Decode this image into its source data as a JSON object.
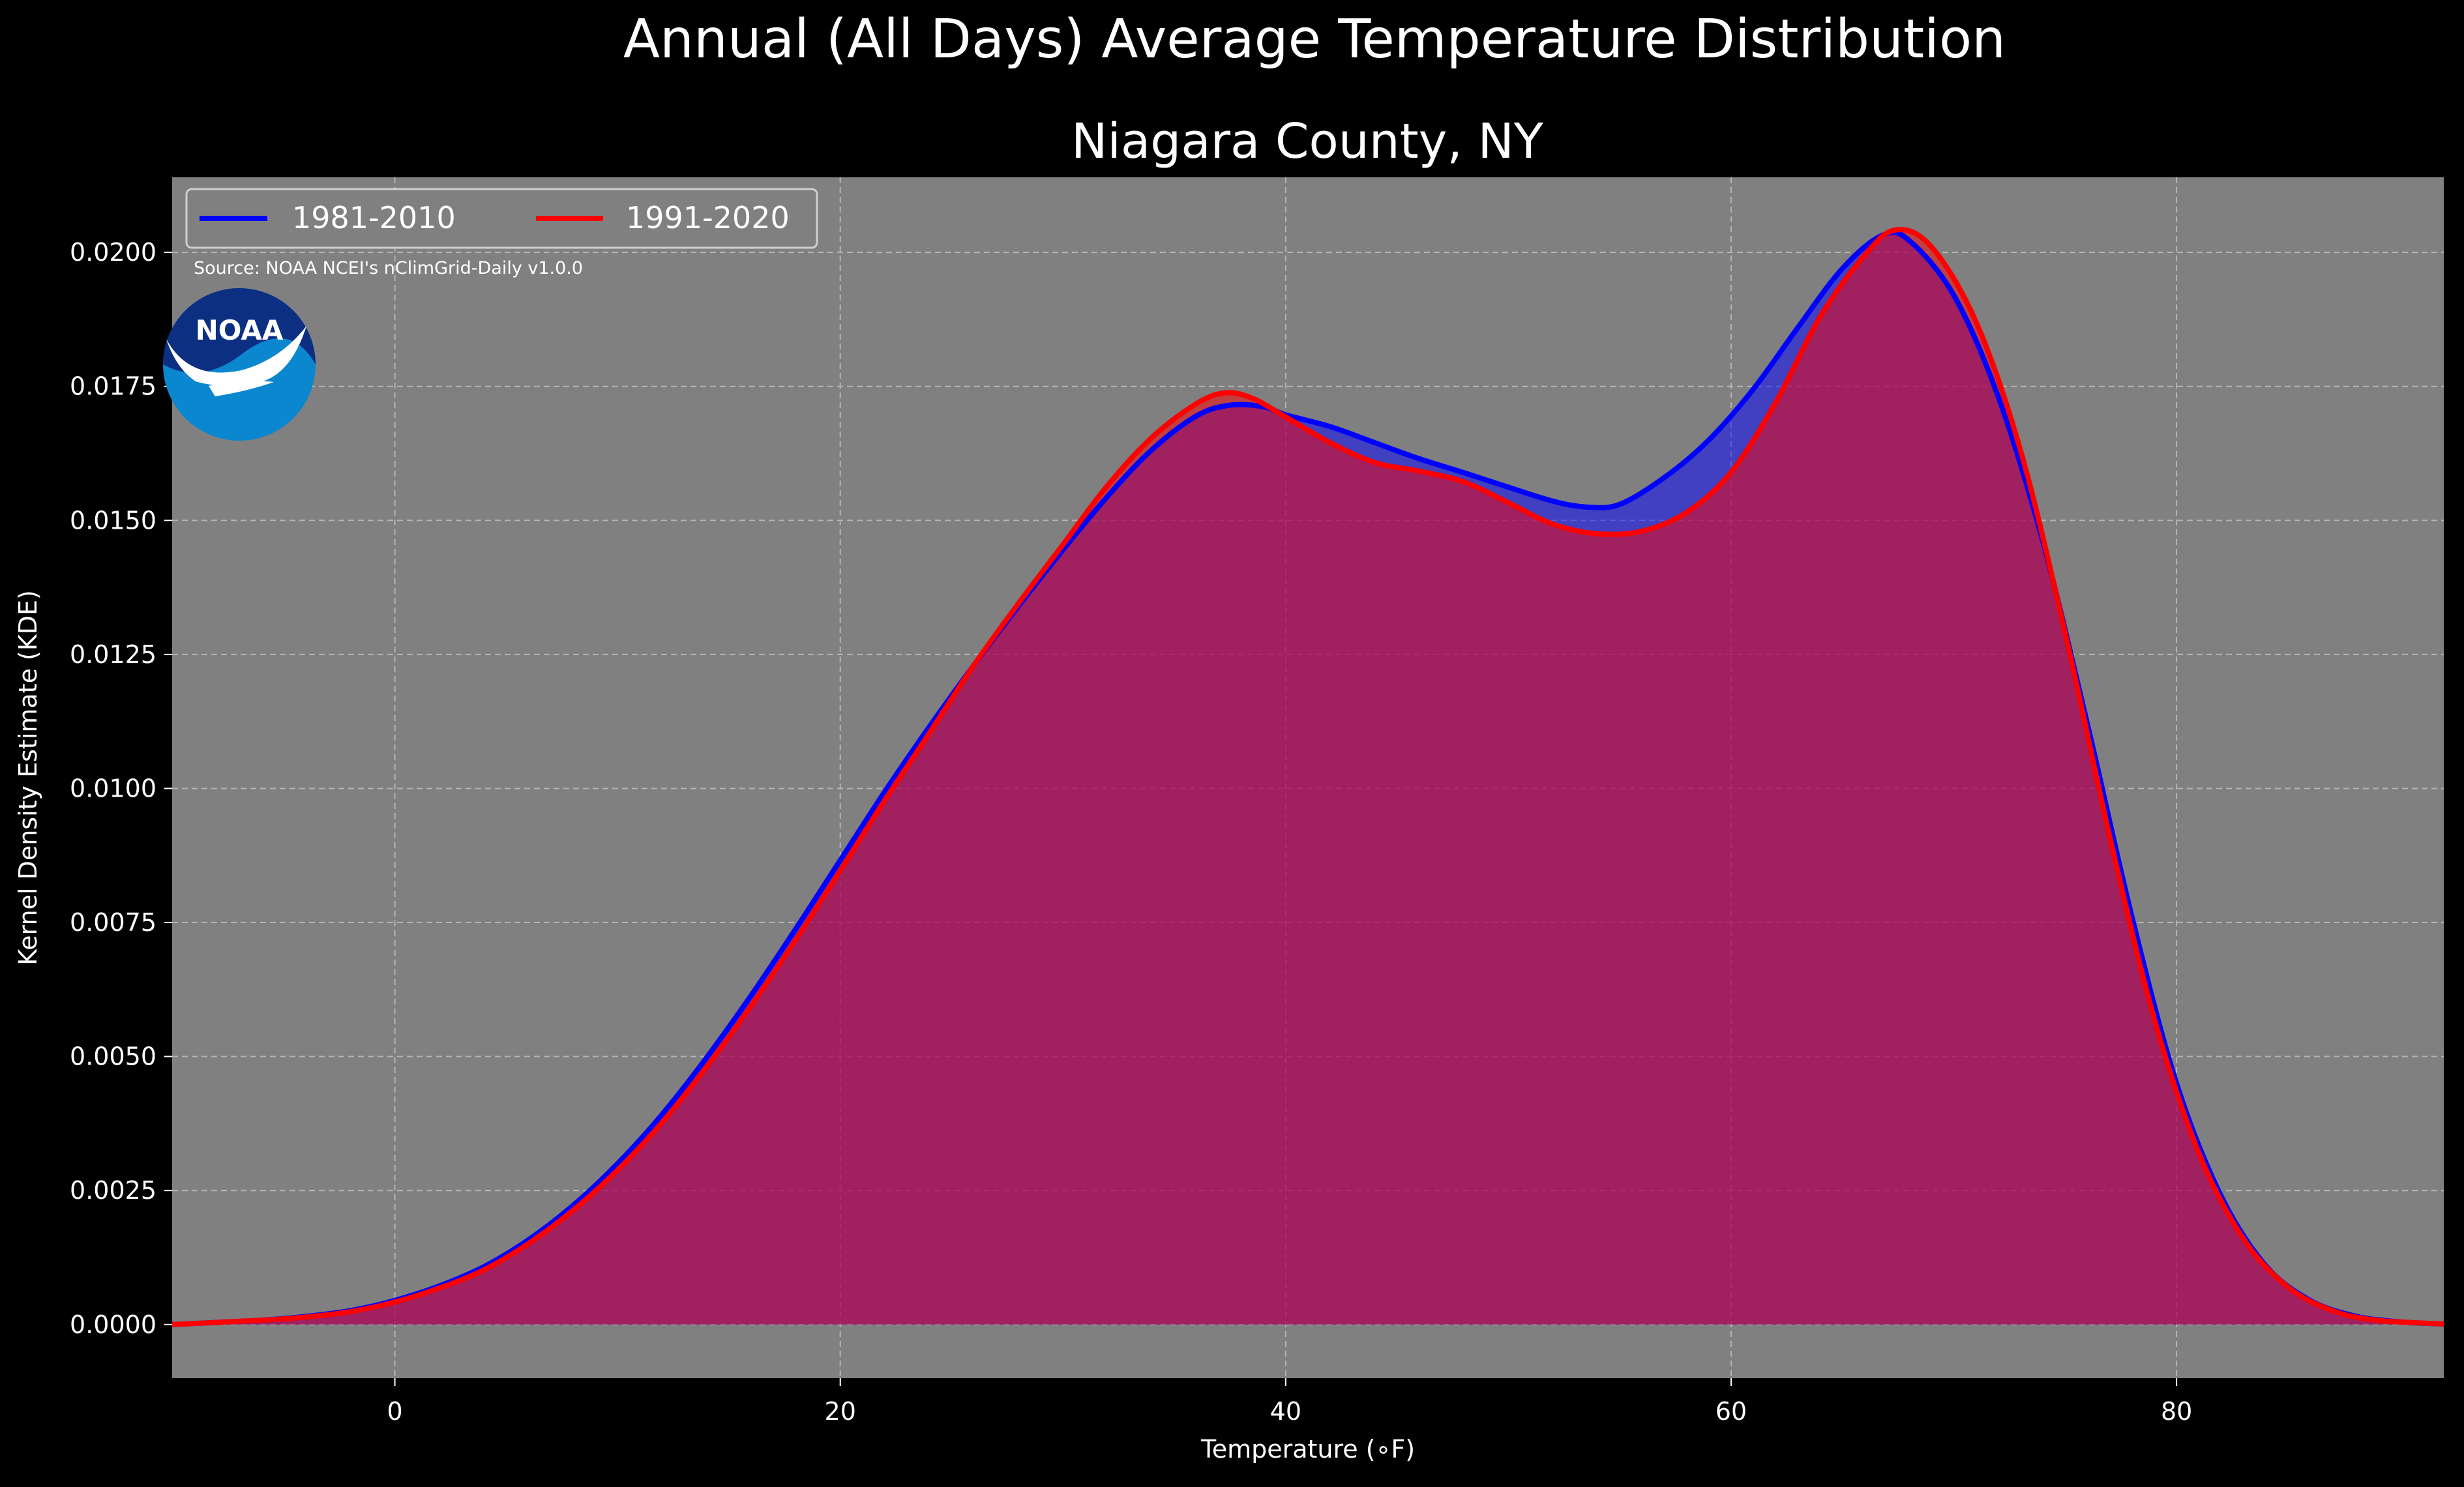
{
  "chart_data": {
    "type": "area",
    "title": "Annual (All Days) Average Temperature Distribution",
    "subtitle": "Niagara County, NY",
    "xlabel": "Temperature (∘F)",
    "ylabel": "Kernel Density Estimate (KDE)",
    "xlim": [
      -10,
      92
    ],
    "ylim": [
      -0.001,
      0.0214
    ],
    "xticks": [
      0,
      20,
      40,
      60,
      80
    ],
    "xtick_labels": [
      "0",
      "20",
      "40",
      "60",
      "80"
    ],
    "yticks": [
      0.0,
      0.0025,
      0.005,
      0.0075,
      0.01,
      0.0125,
      0.015,
      0.0175,
      0.02
    ],
    "ytick_labels": [
      "0.0000",
      "0.0025",
      "0.0050",
      "0.0075",
      "0.0100",
      "0.0125",
      "0.0150",
      "0.0175",
      "0.0200"
    ],
    "grid": true,
    "legend_position": "top-left",
    "source_note": "Source: NOAA NCEI's nClimGrid-Daily v1.0.0",
    "logo_text": "NOAA",
    "colors": {
      "background": "#000000",
      "plot_background": "#808080",
      "grid": "#b4b4b4",
      "text": "#ffffff",
      "series_1981_2010": "#0000ff",
      "series_1991_2020": "#ff0000",
      "overlap_fill": "#9e1f5c",
      "logo_blue": "#0a87cf",
      "logo_navy": "#0c2f82"
    },
    "series": [
      {
        "name": "1981-2010",
        "color": "#0000ff",
        "x": [
          -10,
          -6,
          -4,
          -2,
          0,
          2,
          4,
          6,
          8,
          10,
          12,
          14,
          16,
          18,
          20,
          22,
          24,
          26,
          28,
          30,
          32,
          34,
          36,
          37.5,
          39,
          40,
          42,
          44,
          46,
          48,
          50,
          52,
          53.5,
          55,
          57,
          59,
          61,
          63,
          65,
          66.8,
          68,
          70,
          72,
          74,
          76,
          78,
          80,
          82,
          84,
          86,
          88,
          90,
          92
        ],
        "y": [
          0.0,
          8e-05,
          0.00015,
          0.00026,
          0.00045,
          0.00072,
          0.00108,
          0.00158,
          0.00222,
          0.003,
          0.00392,
          0.00498,
          0.00614,
          0.00738,
          0.00866,
          0.00994,
          0.01115,
          0.0123,
          0.0134,
          0.01445,
          0.01545,
          0.01632,
          0.01695,
          0.01715,
          0.01712,
          0.01697,
          0.01675,
          0.01645,
          0.01615,
          0.01589,
          0.01562,
          0.01536,
          0.01525,
          0.0153,
          0.0158,
          0.0165,
          0.01745,
          0.0186,
          0.0197,
          0.02032,
          0.02022,
          0.0192,
          0.0173,
          0.0146,
          0.0112,
          0.0076,
          0.0045,
          0.0024,
          0.0011,
          0.00045,
          0.00016,
          5e-05,
          1e-05
        ]
      },
      {
        "name": "1991-2020",
        "color": "#ff0000",
        "x": [
          -10,
          -6,
          -4,
          -2,
          0,
          2,
          4,
          6,
          8,
          10,
          12,
          14,
          16,
          18,
          20,
          22,
          24,
          26,
          28,
          30,
          32,
          34,
          36,
          37.3,
          38.5,
          40,
          42,
          44,
          46,
          48,
          50,
          52,
          54,
          56,
          58,
          60,
          62,
          64,
          66,
          67.4,
          69,
          71,
          73,
          75,
          77,
          79,
          81,
          83,
          85,
          87,
          89,
          92
        ],
        "y": [
          0.0,
          8e-05,
          0.00014,
          0.00024,
          0.00042,
          0.00068,
          0.00102,
          0.00151,
          0.00213,
          0.00288,
          0.00377,
          0.00481,
          0.00595,
          0.00718,
          0.00847,
          0.00978,
          0.01103,
          0.0123,
          0.01345,
          0.01455,
          0.01565,
          0.01655,
          0.01718,
          0.01738,
          0.01728,
          0.01693,
          0.01645,
          0.01608,
          0.01592,
          0.01572,
          0.01533,
          0.01493,
          0.01475,
          0.0148,
          0.01515,
          0.0159,
          0.0172,
          0.0188,
          0.01995,
          0.02042,
          0.0201,
          0.0187,
          0.0163,
          0.0129,
          0.0091,
          0.0057,
          0.0032,
          0.0016,
          0.0007,
          0.00026,
          8e-05,
          1e-05
        ]
      }
    ]
  }
}
